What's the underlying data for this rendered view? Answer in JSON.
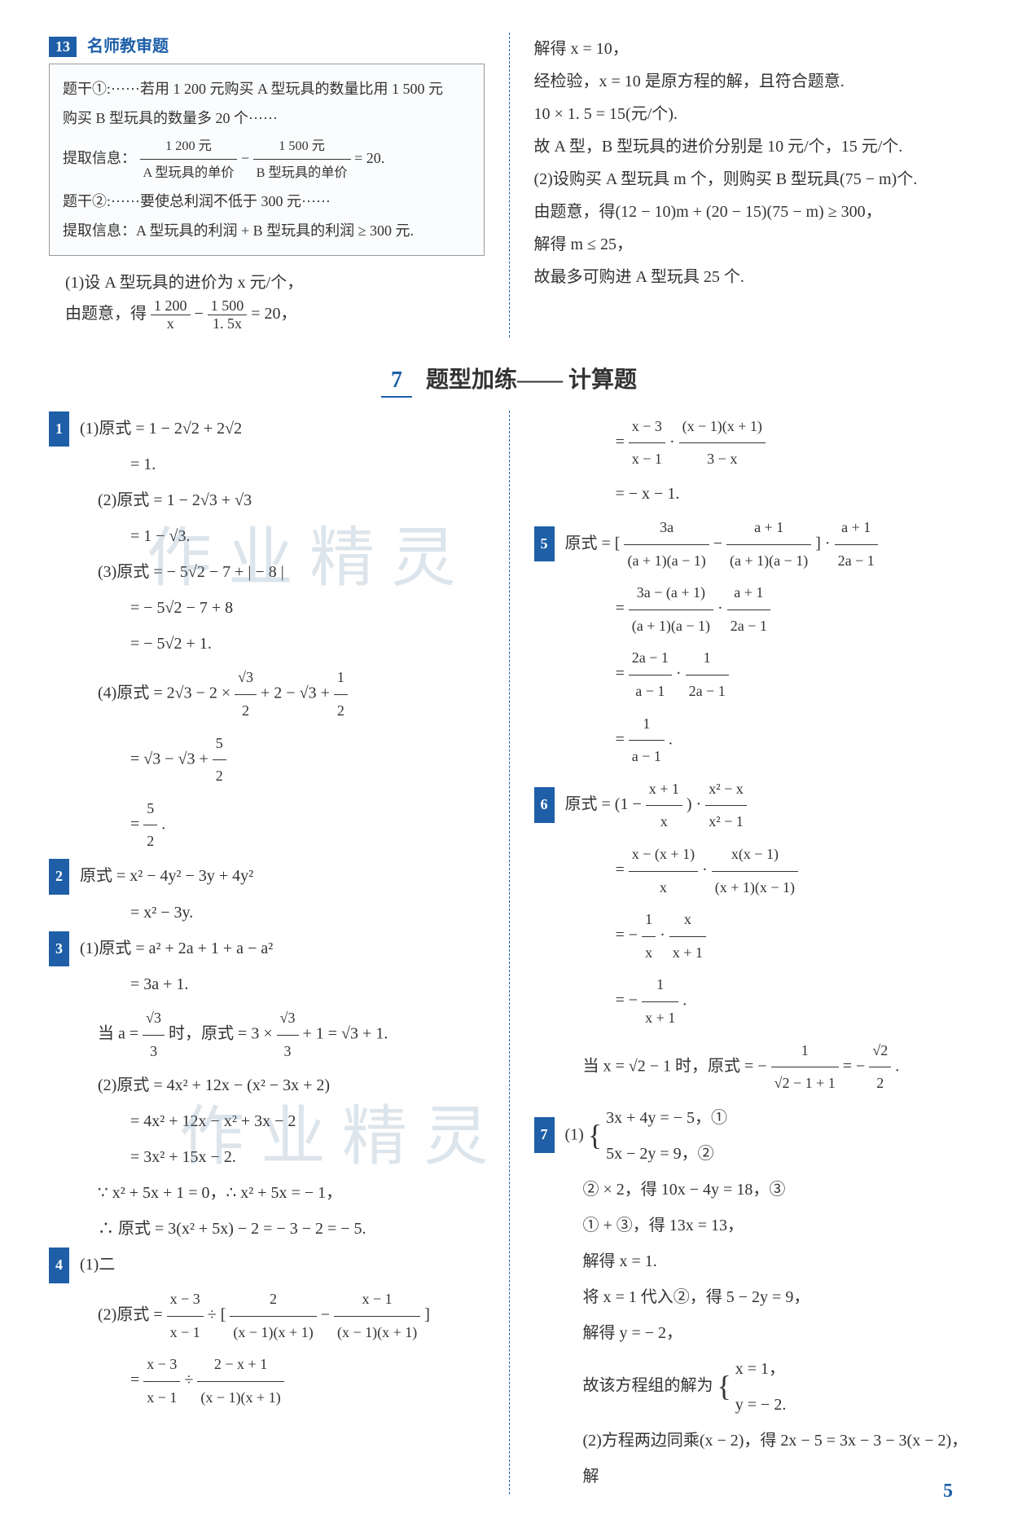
{
  "topLeft": {
    "badge": "13",
    "teacherReview": "名师教审题",
    "box": {
      "l1": "题干①:······若用 1 200 元购买 A 型玩具的数量比用 1 500 元",
      "l2": "购买 B 型玩具的数量多 20 个······",
      "l3a": "提取信息：",
      "l3_num1": "1 200 元",
      "l3_den1": "A 型玩具的单价",
      "l3_mid": " − ",
      "l3_num2": "1 500 元",
      "l3_den2": "B 型玩具的单价",
      "l3_eq": " = 20.",
      "l4": "题干②:······要使总利润不低于 300 元······",
      "l5": "提取信息：A 型玩具的利润 + B 型玩具的利润 ≥ 300 元."
    },
    "below1": "(1)设 A 型玩具的进价为 x 元/个，",
    "below2a": "由题意，得",
    "below2_num1": "1 200",
    "below2_den1": "x",
    "below2_mid": " − ",
    "below2_num2": "1 500",
    "below2_den2": "1. 5x",
    "below2_eq": " = 20，"
  },
  "topRight": {
    "l1": "解得 x = 10，",
    "l2": "经检验，x = 10 是原方程的解，且符合题意.",
    "l3": "10 × 1. 5 = 15(元/个).",
    "l4": "故 A 型，B 型玩具的进价分别是 10 元/个，15 元/个.",
    "l5": "(2)设购买 A 型玩具 m 个，则购买 B 型玩具(75 − m)个.",
    "l6": "由题意，得(12 − 10)m + (20 − 15)(75 − m) ≥ 300，",
    "l7": "解得 m ≤ 25，",
    "l8": "故最多可购进 A 型玩具 25 个."
  },
  "section": {
    "num": "7",
    "title": "题型加练—— 计算题"
  },
  "left": {
    "q1": {
      "badge": "1",
      "l1": "(1)原式 = 1 − 2√2 + 2√2",
      "l2": "= 1.",
      "l3": "(2)原式 = 1 − 2√3 + √3",
      "l4": "= 1 − √3.",
      "l5": "(3)原式 = − 5√2 − 7 + | − 8 |",
      "l6": "= − 5√2 − 7 + 8",
      "l7": "= − 5√2 + 1.",
      "l8a": "(4)原式 = 2√3 − 2 × ",
      "l8_num": "√3",
      "l8_den": "2",
      "l8b": " + 2 − √3 + ",
      "l8_num2": "1",
      "l8_den2": "2",
      "l9a": "= √3 − √3 + ",
      "l9_num": "5",
      "l9_den": "2",
      "l10a": "= ",
      "l10_num": "5",
      "l10_den": "2",
      "l10b": "."
    },
    "q2": {
      "badge": "2",
      "l1": "原式 = x² − 4y² − 3y + 4y²",
      "l2": "= x² − 3y."
    },
    "q3": {
      "badge": "3",
      "l1": "(1)原式 = a² + 2a + 1 + a − a²",
      "l2": "= 3a + 1.",
      "l3a": "当 a = ",
      "l3_num": "√3",
      "l3_den": "3",
      "l3b": "时，原式 = 3 × ",
      "l3_num2": "√3",
      "l3_den2": "3",
      "l3c": " + 1 = √3 + 1.",
      "l4": "(2)原式 = 4x² + 12x − (x² − 3x + 2)",
      "l5": "= 4x² + 12x − x² + 3x − 2",
      "l6": "= 3x² + 15x − 2.",
      "l7": "∵ x² + 5x + 1 = 0，∴ x² + 5x = − 1，",
      "l8": "∴ 原式 = 3(x² + 5x) − 2 = − 3 − 2 = − 5."
    },
    "q4": {
      "badge": "4",
      "l1": "(1)二",
      "l2a": "(2)原式 = ",
      "l2_f1n": "x − 3",
      "l2_f1d": "x − 1",
      "l2_mid": " ÷ [ ",
      "l2_f2n": "2",
      "l2_f2d": "(x − 1)(x + 1)",
      "l2_mid2": " − ",
      "l2_f3n": "x − 1",
      "l2_f3d": "(x − 1)(x + 1)",
      "l2_end": " ]",
      "l3a": "= ",
      "l3_f1n": "x − 3",
      "l3_f1d": "x − 1",
      "l3_mid": " ÷ ",
      "l3_f2n": "2 − x + 1",
      "l3_f2d": "(x − 1)(x + 1)"
    }
  },
  "right": {
    "cont4": {
      "l1a": "= ",
      "l1_f1n": "x − 3",
      "l1_f1d": "x − 1",
      "l1_mid": " · ",
      "l1_f2n": "(x − 1)(x + 1)",
      "l1_f2d": "3 − x",
      "l2": "= − x − 1."
    },
    "q5": {
      "badge": "5",
      "l1a": "原式 = [ ",
      "l1_f1n": "3a",
      "l1_f1d": "(a + 1)(a − 1)",
      "l1_mid": " − ",
      "l1_f2n": "a + 1",
      "l1_f2d": "(a + 1)(a − 1)",
      "l1_mid2": " ] · ",
      "l1_f3n": "a + 1",
      "l1_f3d": "2a − 1",
      "l2a": "= ",
      "l2_f1n": "3a − (a + 1)",
      "l2_f1d": "(a + 1)(a − 1)",
      "l2_mid": " · ",
      "l2_f2n": "a + 1",
      "l2_f2d": "2a − 1",
      "l3a": "= ",
      "l3_f1n": "2a − 1",
      "l3_f1d": "a − 1",
      "l3_mid": " · ",
      "l3_f2n": "1",
      "l3_f2d": "2a − 1",
      "l4a": "= ",
      "l4_fn": "1",
      "l4_fd": "a − 1",
      "l4b": "."
    },
    "q6": {
      "badge": "6",
      "l1a": "原式 = (1 − ",
      "l1_f1n": "x + 1",
      "l1_f1d": "x",
      "l1_mid": ") · ",
      "l1_f2n": "x² − x",
      "l1_f2d": "x² − 1",
      "l2a": "= ",
      "l2_f1n": "x − (x + 1)",
      "l2_f1d": "x",
      "l2_mid": " · ",
      "l2_f2n": "x(x − 1)",
      "l2_f2d": "(x + 1)(x − 1)",
      "l3a": "= − ",
      "l3_f1n": "1",
      "l3_f1d": "x",
      "l3_mid": " · ",
      "l3_f2n": "x",
      "l3_f2d": "x + 1",
      "l4a": "= − ",
      "l4_fn": "1",
      "l4_fd": "x + 1",
      "l4b": ".",
      "l5a": "当 x = √2 − 1 时，原式 = − ",
      "l5_f1n": "1",
      "l5_f1d": "√2 − 1 + 1",
      "l5_mid": " = − ",
      "l5_f2n": "√2",
      "l5_f2d": "2",
      "l5_end": "."
    },
    "q7": {
      "badge": "7",
      "l1a": "(1)",
      "l1_eq1": "3x + 4y = − 5，①",
      "l1_eq2": "5x − 2y = 9，②",
      "l2": "② × 2，得 10x − 4y = 18，③",
      "l3": "① + ③，得 13x = 13，",
      "l4": "解得 x = 1.",
      "l5": "将 x = 1 代入②，得 5 − 2y = 9，",
      "l6": "解得 y = − 2，",
      "l7a": "故该方程组的解为",
      "l7_eq1": "x = 1，",
      "l7_eq2": "y = − 2.",
      "l8": "(2)方程两边同乘(x − 2)，得 2x − 5 = 3x − 3 − 3(x − 2)，解"
    }
  },
  "watermark": "作业精灵",
  "pageNum": "5",
  "colors": {
    "badge_bg": "#1e5fa8",
    "accent": "#1e5fa8",
    "text": "#333333",
    "bg": "#ffffff"
  },
  "typography": {
    "body_fontsize": 20,
    "title_fontsize": 28,
    "badge_fontsize": 18
  }
}
